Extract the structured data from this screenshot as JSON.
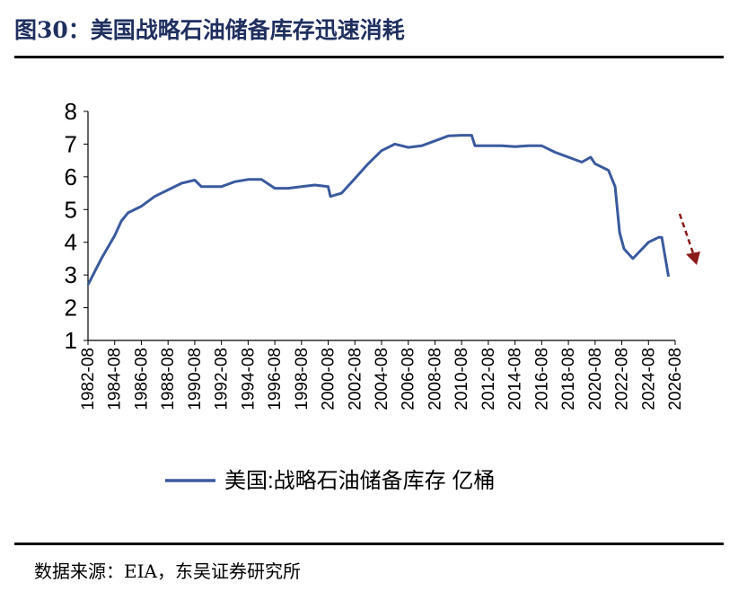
{
  "title": "图30：美国战略石油储备库存迅速消耗",
  "source": "数据来源：EIA，东吴证券研究所",
  "chart_data": {
    "type": "line",
    "title": "图30：美国战略石油储备库存迅速消耗",
    "ylim": [
      1,
      8
    ],
    "yticks": [
      "1",
      "2",
      "3",
      "4",
      "5",
      "6",
      "7",
      "8"
    ],
    "xticks": [
      "1982-08",
      "1984-08",
      "1986-08",
      "1988-08",
      "1990-08",
      "1992-08",
      "1994-08",
      "1996-08",
      "1998-08",
      "2000-08",
      "2002-08",
      "2004-08",
      "2006-08",
      "2008-08",
      "2010-08",
      "2012-08",
      "2014-08",
      "2016-08",
      "2018-08",
      "2020-08",
      "2022-08",
      "2024-08",
      "2026-08"
    ],
    "grid": false,
    "legend_position": "bottom",
    "series": [
      {
        "name": "美国:战略石油储备库存 亿桶",
        "color": "#3a5a9e",
        "x": [
          "1982-08",
          "1983-08",
          "1984-08",
          "1985-02",
          "1985-08",
          "1986-08",
          "1987-08",
          "1988-08",
          "1989-08",
          "1990-08",
          "1991-02",
          "1992-08",
          "1993-08",
          "1994-08",
          "1995-08",
          "1996-08",
          "1997-08",
          "1998-08",
          "1999-08",
          "2000-08",
          "2000-10",
          "2001-08",
          "2002-08",
          "2003-08",
          "2004-08",
          "2005-08",
          "2006-08",
          "2007-08",
          "2008-08",
          "2009-08",
          "2010-08",
          "2011-05",
          "2011-08",
          "2012-08",
          "2013-08",
          "2014-08",
          "2015-08",
          "2016-08",
          "2017-08",
          "2018-08",
          "2019-08",
          "2020-04",
          "2020-08",
          "2021-08",
          "2022-02",
          "2022-06",
          "2022-10",
          "2023-06",
          "2024-08",
          "2025-05",
          "2025-08",
          "2026-02"
        ],
        "values": [
          2.7,
          3.5,
          4.2,
          4.65,
          4.9,
          5.1,
          5.4,
          5.6,
          5.8,
          5.9,
          5.7,
          5.7,
          5.85,
          5.92,
          5.92,
          5.65,
          5.65,
          5.7,
          5.75,
          5.7,
          5.4,
          5.5,
          5.95,
          6.4,
          6.8,
          7.0,
          6.9,
          6.95,
          7.1,
          7.25,
          7.27,
          7.27,
          6.95,
          6.95,
          6.95,
          6.92,
          6.95,
          6.95,
          6.75,
          6.6,
          6.45,
          6.6,
          6.4,
          6.2,
          5.7,
          4.3,
          3.8,
          3.5,
          4.0,
          4.15,
          4.15,
          2.95
        ]
      }
    ],
    "annotation": "red dashed downward arrow"
  }
}
